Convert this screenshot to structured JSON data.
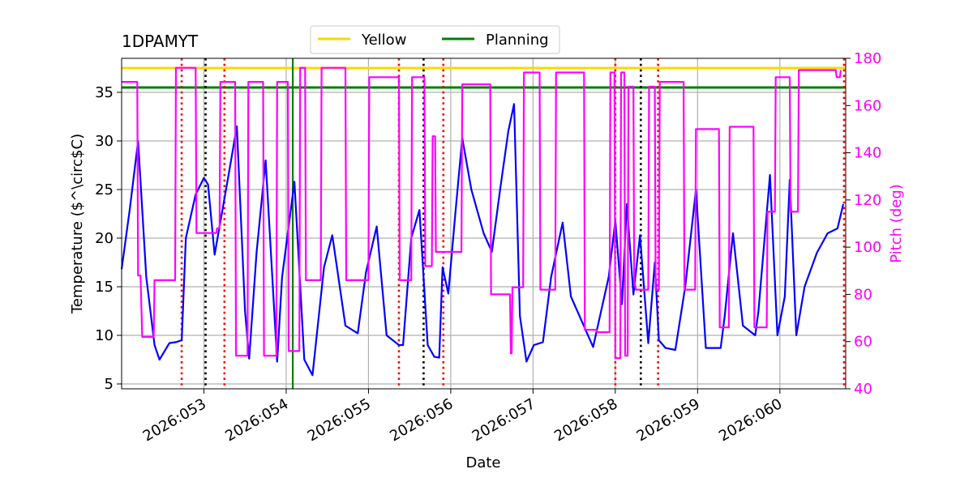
{
  "chart_data": {
    "type": "line",
    "title": "1DPAMYT",
    "xlabel": "Date",
    "ylabel_left": "Temperature ($^\\circ$C)",
    "ylabel_right": "Pitch (deg)",
    "xlim": [
      52.0,
      60.8
    ],
    "ylim_left": [
      4.5,
      38.5
    ],
    "ylim_right": [
      40,
      180
    ],
    "x_ticks": [
      {
        "value": 53,
        "label": "2026:053"
      },
      {
        "value": 54,
        "label": "2026:054"
      },
      {
        "value": 55,
        "label": "2026:055"
      },
      {
        "value": 56,
        "label": "2026:056"
      },
      {
        "value": 57,
        "label": "2026:057"
      },
      {
        "value": 58,
        "label": "2026:058"
      },
      {
        "value": 59,
        "label": "2026:059"
      },
      {
        "value": 60,
        "label": "2026:060"
      }
    ],
    "y_ticks_left": [
      5,
      10,
      15,
      20,
      25,
      30,
      35
    ],
    "y_ticks_right": [
      40,
      60,
      80,
      100,
      120,
      140,
      160,
      180
    ],
    "grid": true,
    "legend": {
      "placement": "top-center",
      "entries": [
        {
          "label": "Yellow",
          "color": "#ffd700"
        },
        {
          "label": "Planning",
          "color": "#008000"
        }
      ]
    },
    "limits": [
      {
        "name": "Yellow",
        "value": 37.5,
        "color": "#ffd700"
      },
      {
        "name": "Planning",
        "value": 35.5,
        "color": "#008000"
      }
    ],
    "series": [
      {
        "name": "Temperature",
        "axis": "left",
        "color": "#0000ff",
        "x": [
          52.0,
          52.1,
          52.2,
          52.3,
          52.4,
          52.46,
          52.58,
          52.66,
          52.73,
          52.78,
          52.9,
          53.0,
          53.05,
          53.13,
          53.3,
          53.4,
          53.5,
          53.55,
          53.64,
          53.75,
          53.89,
          53.95,
          54.1,
          54.22,
          54.32,
          54.46,
          54.56,
          54.72,
          54.87,
          54.97,
          55.1,
          55.22,
          55.37,
          55.42,
          55.52,
          55.62,
          55.72,
          55.8,
          55.86,
          55.9,
          55.97,
          56.05,
          56.14,
          56.25,
          56.4,
          56.5,
          56.6,
          56.7,
          56.77,
          56.84,
          56.92,
          57.01,
          57.12,
          57.22,
          57.36,
          57.46,
          57.73,
          57.92,
          58.0,
          58.08,
          58.14,
          58.22,
          58.3,
          58.4,
          58.48,
          58.53,
          58.61,
          58.73,
          58.85,
          58.98,
          59.1,
          59.28,
          59.33,
          59.43,
          59.55,
          59.7,
          59.74,
          59.88,
          59.97,
          60.06,
          60.12,
          60.2,
          60.3,
          60.45,
          60.58,
          60.7,
          60.77
        ],
        "y": [
          16.8,
          23.0,
          30.0,
          16.0,
          9.0,
          7.5,
          9.2,
          9.3,
          9.5,
          20.0,
          24.5,
          26.2,
          25.5,
          18.3,
          26.5,
          31.5,
          12.5,
          7.6,
          18.5,
          28.0,
          7.3,
          16.0,
          25.8,
          7.5,
          5.9,
          17.0,
          20.3,
          11.0,
          10.2,
          16.5,
          21.2,
          10.0,
          9.0,
          9.0,
          20.0,
          22.9,
          9.0,
          7.8,
          7.7,
          17.0,
          14.3,
          22.0,
          30.3,
          25.0,
          20.5,
          18.6,
          25.0,
          31.0,
          33.8,
          12.0,
          7.3,
          9.0,
          9.3,
          16.0,
          21.6,
          14.0,
          8.8,
          16.0,
          21.8,
          13.2,
          23.5,
          14.2,
          20.3,
          9.2,
          17.5,
          9.5,
          8.7,
          8.5,
          15.0,
          25.0,
          8.7,
          8.7,
          12.0,
          20.5,
          11.0,
          10.0,
          12.5,
          26.5,
          10.0,
          14.0,
          26.0,
          10.0,
          15.0,
          18.5,
          20.5,
          21.0,
          23.5
        ]
      },
      {
        "name": "Pitch",
        "axis": "right",
        "color": "#ff00ff",
        "x": [
          52.0,
          52.19,
          52.2,
          52.23,
          52.25,
          52.39,
          52.4,
          52.65,
          52.66,
          52.9,
          52.91,
          53.15,
          53.16,
          53.19,
          53.2,
          53.38,
          53.39,
          53.53,
          53.54,
          53.72,
          53.73,
          53.88,
          53.89,
          54.02,
          54.03,
          54.16,
          54.17,
          54.23,
          54.24,
          54.42,
          54.43,
          54.72,
          54.73,
          54.88,
          54.89,
          55.0,
          55.01,
          55.37,
          55.38,
          55.52,
          55.53,
          55.68,
          55.69,
          55.77,
          55.78,
          55.81,
          55.82,
          55.95,
          55.96,
          56.13,
          56.14,
          56.48,
          56.49,
          56.72,
          56.73,
          56.74,
          56.75,
          56.88,
          56.89,
          57.08,
          57.09,
          57.27,
          57.28,
          57.62,
          57.63,
          57.77,
          57.78,
          57.93,
          57.94,
          57.99,
          58.0,
          58.06,
          58.07,
          58.11,
          58.12,
          58.15,
          58.16,
          58.22,
          58.23,
          58.24,
          58.25,
          58.4,
          58.41,
          58.48,
          58.49,
          58.53,
          58.54,
          58.83,
          58.84,
          58.97,
          58.98,
          59.26,
          59.27,
          59.38,
          59.39,
          59.68,
          59.69,
          59.84,
          59.85,
          59.94,
          59.95,
          60.12,
          60.13,
          60.22,
          60.23,
          60.68,
          60.69,
          60.73,
          60.74
        ],
        "y": [
          170,
          170,
          88,
          88,
          62,
          62,
          86,
          86,
          176,
          176,
          106,
          106,
          108,
          108,
          170,
          170,
          54,
          54,
          170,
          170,
          54,
          54,
          170,
          170,
          56,
          56,
          176,
          176,
          86,
          86,
          176,
          176,
          86,
          86,
          86,
          86,
          172,
          172,
          86,
          86,
          172,
          172,
          92,
          92,
          147,
          147,
          98,
          98,
          98,
          98,
          169,
          169,
          80,
          80,
          55,
          55,
          83,
          83,
          174,
          174,
          82,
          82,
          174,
          174,
          65,
          65,
          64,
          64,
          174,
          174,
          53,
          53,
          174,
          174,
          54,
          54,
          168,
          168,
          84,
          84,
          82,
          82,
          168,
          168,
          82,
          82,
          170,
          170,
          82,
          82,
          150,
          150,
          66,
          66,
          151,
          151,
          66,
          66,
          115,
          115,
          172,
          172,
          115,
          115,
          175,
          175,
          172,
          172,
          175
        ]
      }
    ],
    "events": [
      {
        "x": 52.73,
        "color": "#ff0000",
        "style": "dotted"
      },
      {
        "x": 53.02,
        "color": "#000000",
        "style": "dotted"
      },
      {
        "x": 53.25,
        "color": "#ff0000",
        "style": "dotted"
      },
      {
        "x": 54.08,
        "color": "#008000",
        "style": "solid"
      },
      {
        "x": 55.37,
        "color": "#ff0000",
        "style": "dotted"
      },
      {
        "x": 55.67,
        "color": "#000000",
        "style": "dotted"
      },
      {
        "x": 55.91,
        "color": "#ff0000",
        "style": "dotted"
      },
      {
        "x": 58.0,
        "color": "#ff0000",
        "style": "dotted"
      },
      {
        "x": 58.31,
        "color": "#000000",
        "style": "dotted"
      },
      {
        "x": 58.52,
        "color": "#ff0000",
        "style": "dotted"
      },
      {
        "x": 60.78,
        "color": "#ff0000",
        "style": "dotted"
      }
    ]
  }
}
